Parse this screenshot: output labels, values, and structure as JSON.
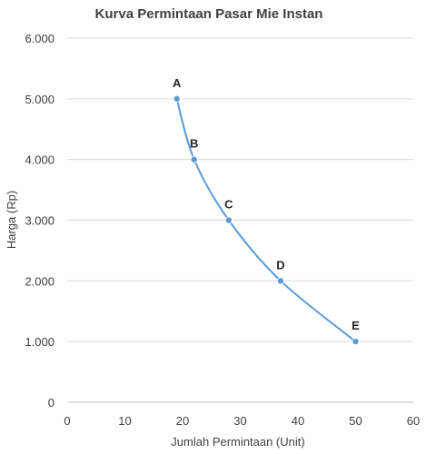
{
  "chart_data": {
    "type": "line",
    "title": "Kurva Permintaan Pasar Mie Instan",
    "xlabel": "Jumlah Permintaan (Unit)",
    "ylabel": "Harga (Rp)",
    "xlim": [
      0,
      60
    ],
    "ylim": [
      0,
      6000
    ],
    "xticks": [
      0,
      10,
      20,
      30,
      40,
      50,
      60
    ],
    "yticks": [
      0,
      1000,
      2000,
      3000,
      4000,
      5000,
      6000
    ],
    "xtick_labels": [
      "0",
      "10",
      "20",
      "30",
      "40",
      "50",
      "60"
    ],
    "ytick_labels": [
      "0",
      "1.000",
      "2.000",
      "3.000",
      "4.000",
      "5.000",
      "6.000"
    ],
    "grid": "horizontal",
    "legend": "none",
    "smooth": true,
    "colors": {
      "line": "#5B9BD5",
      "grid": "#D9D9D9",
      "axis": "#BFBFBF",
      "text": "#404040"
    },
    "series": [
      {
        "points": [
          {
            "label": "A",
            "x": 19,
            "y": 5000
          },
          {
            "label": "B",
            "x": 22,
            "y": 4000
          },
          {
            "label": "C",
            "x": 28,
            "y": 3000
          },
          {
            "label": "D",
            "x": 37,
            "y": 2000
          },
          {
            "label": "E",
            "x": 50,
            "y": 1000
          }
        ]
      }
    ]
  }
}
